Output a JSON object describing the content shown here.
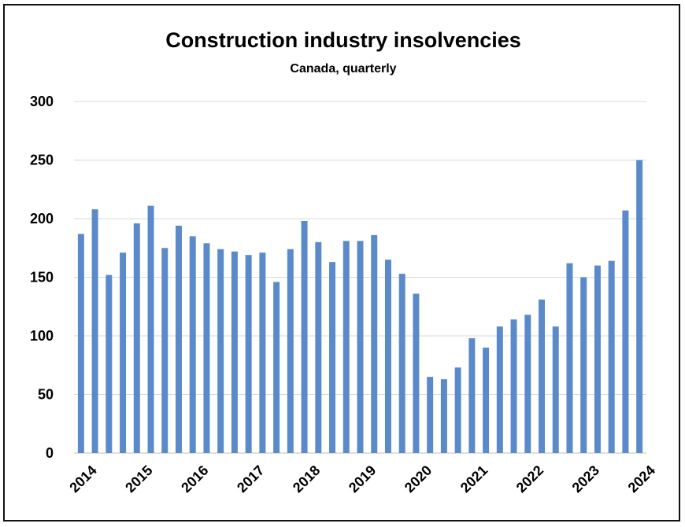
{
  "chart_data": {
    "type": "bar",
    "title": "Construction industry insolvencies",
    "subtitle": "Canada, quarterly",
    "xlabel": "",
    "ylabel": "",
    "ylim": [
      0,
      300
    ],
    "yticks": [
      0,
      50,
      100,
      150,
      200,
      250,
      300
    ],
    "grid": true,
    "legend": "none",
    "bar_color": "#5B8ACB",
    "grid_color": "#D9D9D9",
    "year_labels": [
      "2014",
      "2015",
      "2016",
      "2017",
      "2018",
      "2019",
      "2020",
      "2021",
      "2022",
      "2023",
      "2024"
    ],
    "categories": [
      "2014Q1",
      "2014Q2",
      "2014Q3",
      "2014Q4",
      "2015Q1",
      "2015Q2",
      "2015Q3",
      "2015Q4",
      "2016Q1",
      "2016Q2",
      "2016Q3",
      "2016Q4",
      "2017Q1",
      "2017Q2",
      "2017Q3",
      "2017Q4",
      "2018Q1",
      "2018Q2",
      "2018Q3",
      "2018Q4",
      "2019Q1",
      "2019Q2",
      "2019Q3",
      "2019Q4",
      "2020Q1",
      "2020Q2",
      "2020Q3",
      "2020Q4",
      "2021Q1",
      "2021Q2",
      "2021Q3",
      "2021Q4",
      "2022Q1",
      "2022Q2",
      "2022Q3",
      "2022Q4",
      "2023Q1",
      "2023Q2",
      "2023Q3",
      "2023Q4",
      "2024Q1"
    ],
    "values": [
      187,
      208,
      152,
      171,
      196,
      211,
      175,
      194,
      185,
      179,
      174,
      172,
      169,
      171,
      146,
      174,
      198,
      180,
      163,
      181,
      181,
      186,
      165,
      153,
      136,
      65,
      63,
      73,
      98,
      90,
      108,
      114,
      118,
      131,
      108,
      162,
      150,
      160,
      164,
      207,
      250
    ]
  }
}
